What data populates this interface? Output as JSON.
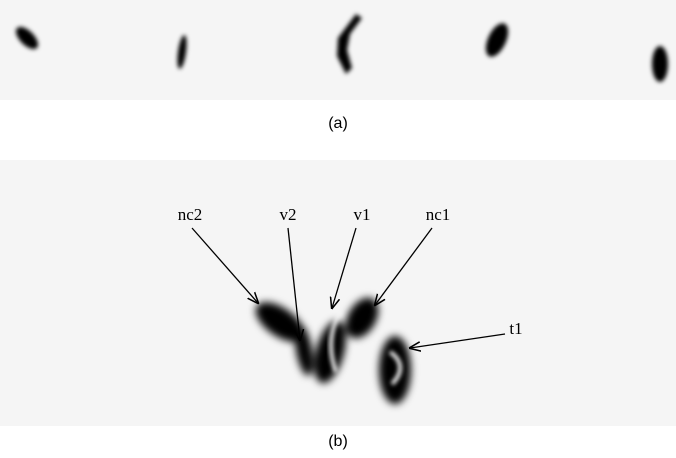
{
  "captions": {
    "a": "(a)",
    "b": "(b)"
  },
  "labels": [
    "nc2",
    "v2",
    "v1",
    "nc1",
    "t1"
  ]
}
